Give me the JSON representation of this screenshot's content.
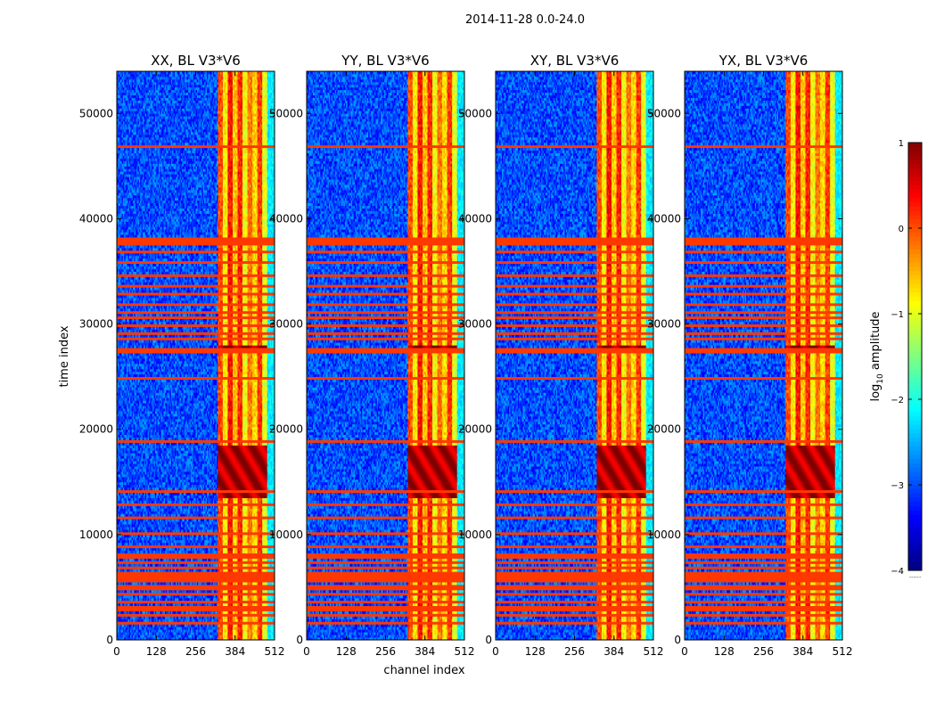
{
  "figure": {
    "suptitle": "2014-11-28 0.0-24.0"
  },
  "chart_data": {
    "type": "heatmap",
    "xlabel": "channel index",
    "ylabel": "time index",
    "xlim": [
      0,
      512
    ],
    "ylim": [
      0,
      54000
    ],
    "x_ticks": [
      0,
      128,
      256,
      384,
      512
    ],
    "y_ticks": [
      0,
      10000,
      20000,
      30000,
      40000,
      50000
    ],
    "panels": [
      {
        "title": "XX, BL V3*V6"
      },
      {
        "title": "YY, BL V3*V6"
      },
      {
        "title": "XY, BL V3*V6"
      },
      {
        "title": "YX, BL V3*V6"
      }
    ],
    "colorbar": {
      "label_base": "log",
      "label_sub": "10",
      "label_rest": " amplitude",
      "range": [
        -4,
        1
      ],
      "ticks": [
        1,
        0,
        -1,
        -2,
        -3,
        -4
      ],
      "tick_labels": [
        "1",
        "0",
        "−1",
        "−2",
        "−3",
        "−4"
      ],
      "colormap": "jet",
      "below_marker": "......"
    },
    "features": {
      "background_level": -3.0,
      "band_channels": [
        330,
        490
      ],
      "band_stripe_levels": [
        0.0,
        -0.8,
        0.3,
        -0.6,
        0.2,
        -0.9,
        -0.2,
        -0.7,
        0.1,
        -1.0
      ],
      "right_edge_channels": [
        490,
        512
      ],
      "right_edge_level": -2.2,
      "flag_level": 0.1,
      "flagged_time_ranges": [
        [
          37600,
          38300
        ],
        [
          27200,
          27700
        ],
        [
          18700,
          18950
        ],
        [
          8800,
          9100
        ],
        [
          5600,
          6500
        ],
        [
          2200,
          2400
        ],
        [
          24700,
          25000
        ]
      ],
      "thin_flag_times": [
        49000,
        46800,
        45000,
        36800,
        35800,
        34600,
        33700,
        32800,
        31900,
        31200,
        30600,
        29800,
        29200,
        28600,
        24000,
        17500,
        15500,
        14200,
        12900,
        11600,
        10200,
        8200,
        7800,
        7300,
        6900,
        5200,
        4800,
        4400,
        4000,
        3600,
        3200,
        2900,
        1600
      ],
      "strong_blocks": [
        {
          "time": [
            27300,
            28100
          ],
          "level": 0.85
        },
        {
          "time": [
            13500,
            18500
          ],
          "level": 0.75
        },
        {
          "time": [
            5800,
            6400
          ],
          "level": 0.95
        }
      ]
    }
  }
}
